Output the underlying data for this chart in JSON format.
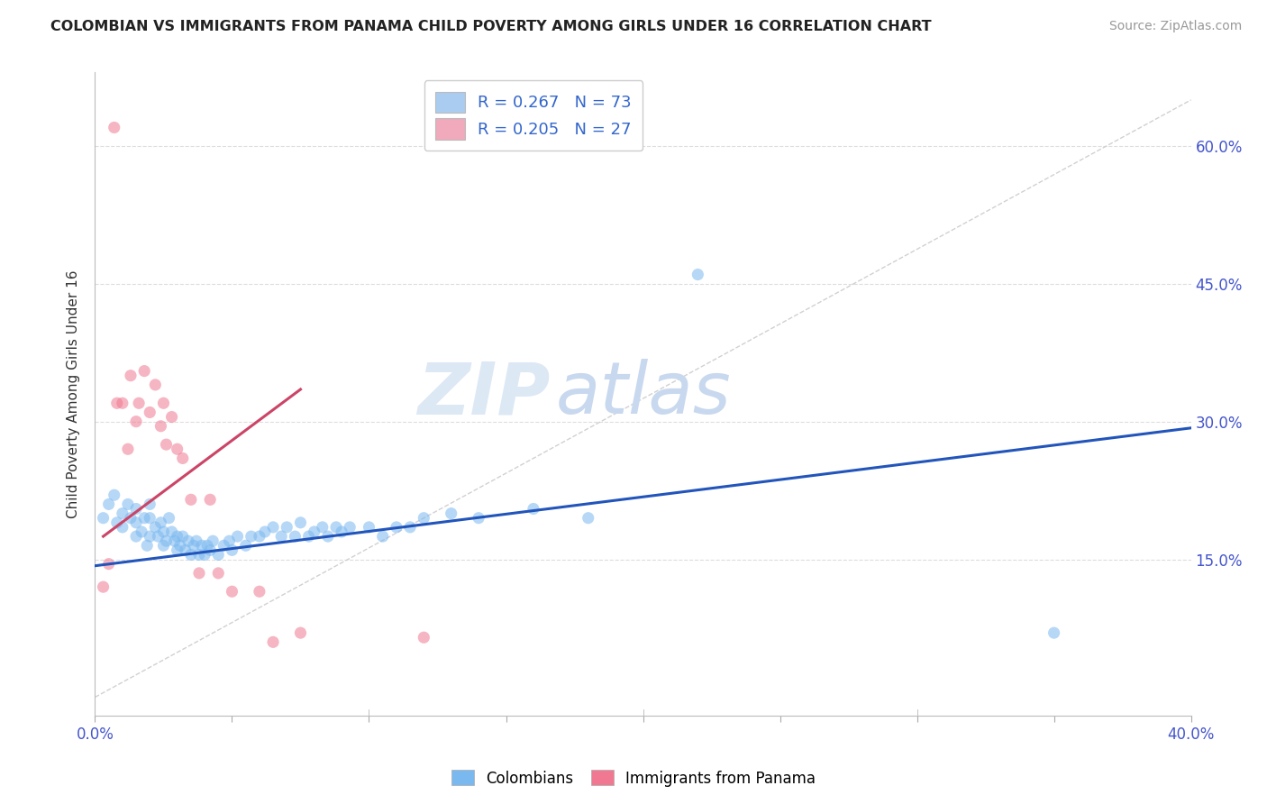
{
  "title": "COLOMBIAN VS IMMIGRANTS FROM PANAMA CHILD POVERTY AMONG GIRLS UNDER 16 CORRELATION CHART",
  "source": "Source: ZipAtlas.com",
  "ylabel": "Child Poverty Among Girls Under 16",
  "ytick_labels": [
    "15.0%",
    "30.0%",
    "45.0%",
    "60.0%"
  ],
  "ytick_values": [
    0.15,
    0.3,
    0.45,
    0.6
  ],
  "xlim": [
    0.0,
    0.4
  ],
  "ylim": [
    -0.02,
    0.68
  ],
  "legend1_label": "R = 0.267   N = 73",
  "legend2_label": "R = 0.205   N = 27",
  "legend1_color": "#aaccf0",
  "legend2_color": "#f0aabb",
  "blue_color": "#7ab8f0",
  "pink_color": "#f07890",
  "trend_blue": "#2255bb",
  "trend_pink": "#cc4466",
  "watermark_zip": "ZIP",
  "watermark_atlas": "atlas",
  "blue_scatter_x": [
    0.003,
    0.005,
    0.007,
    0.008,
    0.01,
    0.01,
    0.012,
    0.013,
    0.015,
    0.015,
    0.015,
    0.017,
    0.018,
    0.019,
    0.02,
    0.02,
    0.02,
    0.022,
    0.023,
    0.024,
    0.025,
    0.025,
    0.026,
    0.027,
    0.028,
    0.029,
    0.03,
    0.03,
    0.031,
    0.032,
    0.033,
    0.034,
    0.035,
    0.036,
    0.037,
    0.038,
    0.039,
    0.04,
    0.041,
    0.042,
    0.043,
    0.045,
    0.047,
    0.049,
    0.05,
    0.052,
    0.055,
    0.057,
    0.06,
    0.062,
    0.065,
    0.068,
    0.07,
    0.073,
    0.075,
    0.078,
    0.08,
    0.083,
    0.085,
    0.088,
    0.09,
    0.093,
    0.1,
    0.105,
    0.11,
    0.115,
    0.12,
    0.13,
    0.14,
    0.16,
    0.18,
    0.22,
    0.35
  ],
  "blue_scatter_y": [
    0.195,
    0.21,
    0.22,
    0.19,
    0.2,
    0.185,
    0.21,
    0.195,
    0.175,
    0.19,
    0.205,
    0.18,
    0.195,
    0.165,
    0.175,
    0.195,
    0.21,
    0.185,
    0.175,
    0.19,
    0.165,
    0.18,
    0.17,
    0.195,
    0.18,
    0.17,
    0.16,
    0.175,
    0.165,
    0.175,
    0.16,
    0.17,
    0.155,
    0.165,
    0.17,
    0.155,
    0.165,
    0.155,
    0.165,
    0.16,
    0.17,
    0.155,
    0.165,
    0.17,
    0.16,
    0.175,
    0.165,
    0.175,
    0.175,
    0.18,
    0.185,
    0.175,
    0.185,
    0.175,
    0.19,
    0.175,
    0.18,
    0.185,
    0.175,
    0.185,
    0.18,
    0.185,
    0.185,
    0.175,
    0.185,
    0.185,
    0.195,
    0.2,
    0.195,
    0.205,
    0.195,
    0.46,
    0.07
  ],
  "pink_scatter_x": [
    0.003,
    0.005,
    0.007,
    0.008,
    0.01,
    0.012,
    0.013,
    0.015,
    0.016,
    0.018,
    0.02,
    0.022,
    0.024,
    0.025,
    0.026,
    0.028,
    0.03,
    0.032,
    0.035,
    0.038,
    0.042,
    0.045,
    0.05,
    0.06,
    0.065,
    0.075,
    0.12
  ],
  "pink_scatter_y": [
    0.12,
    0.145,
    0.62,
    0.32,
    0.32,
    0.27,
    0.35,
    0.3,
    0.32,
    0.355,
    0.31,
    0.34,
    0.295,
    0.32,
    0.275,
    0.305,
    0.27,
    0.26,
    0.215,
    0.135,
    0.215,
    0.135,
    0.115,
    0.115,
    0.06,
    0.07,
    0.065
  ],
  "blue_trend_x": [
    0.0,
    0.4
  ],
  "blue_trend_y": [
    0.143,
    0.293
  ],
  "pink_trend_x": [
    0.003,
    0.075
  ],
  "pink_trend_y": [
    0.175,
    0.335
  ],
  "ref_line_x": [
    0.0,
    0.4
  ],
  "ref_line_y": [
    0.0,
    0.65
  ],
  "bottom_legend_labels": [
    "Colombians",
    "Immigrants from Panama"
  ],
  "bottom_legend_colors": [
    "#7ab8f0",
    "#f07890"
  ]
}
